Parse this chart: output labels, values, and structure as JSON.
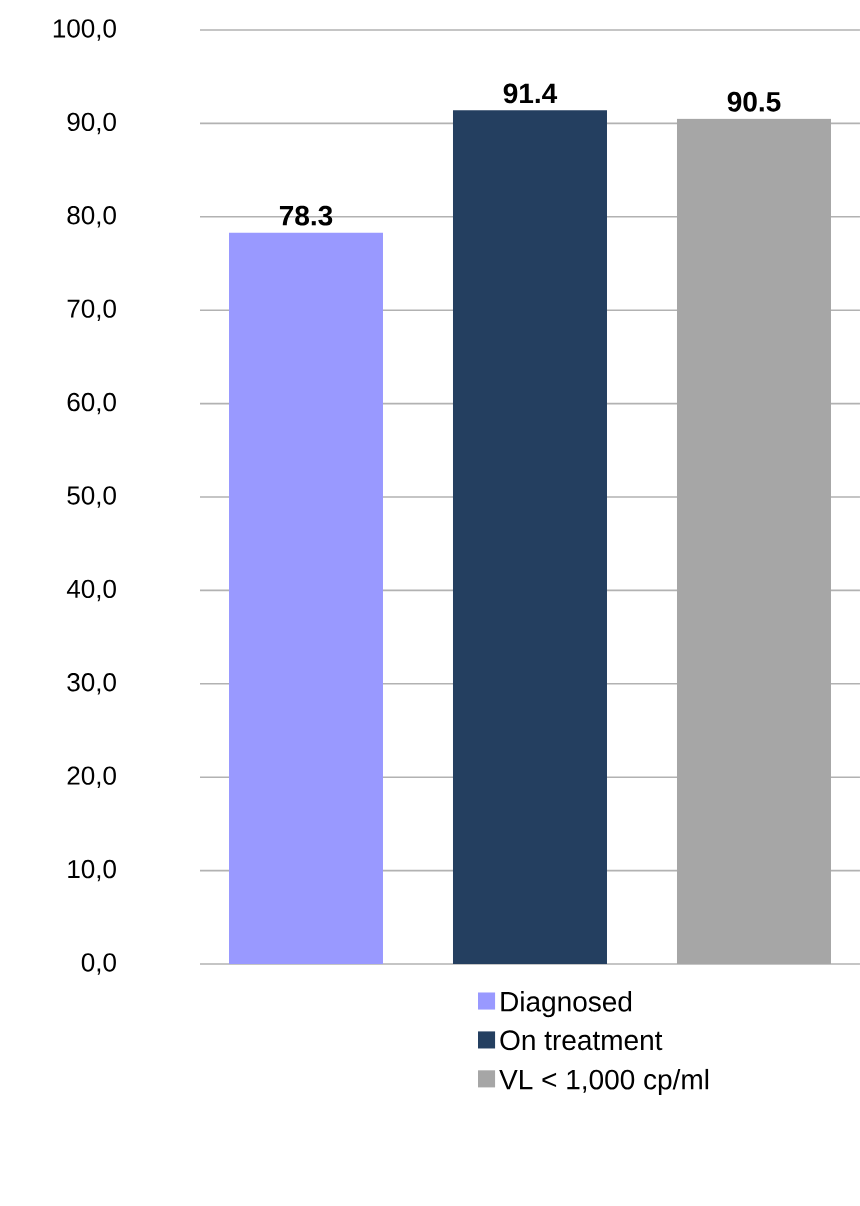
{
  "chart_data": {
    "type": "bar",
    "categories": [
      null
    ],
    "series": [
      {
        "name": "Diagnosed",
        "color": "#9999ff",
        "values": [
          78.3
        ]
      },
      {
        "name": "On treatment",
        "color": "#243f60",
        "values": [
          91.4
        ]
      },
      {
        "name": "VL < 1,000 cp/ml",
        "color": "#a6a6a6",
        "values": [
          90.5
        ]
      }
    ],
    "ylim": [
      0,
      100
    ],
    "yticks": [
      {
        "value": 0,
        "label": "0,0"
      },
      {
        "value": 10,
        "label": "10,0"
      },
      {
        "value": 20,
        "label": "20,0"
      },
      {
        "value": 30,
        "label": "30,0"
      },
      {
        "value": 40,
        "label": "40,0"
      },
      {
        "value": 50,
        "label": "50,0"
      },
      {
        "value": 60,
        "label": "60,0"
      },
      {
        "value": 70,
        "label": "70,0"
      },
      {
        "value": 80,
        "label": "80,0"
      },
      {
        "value": 90,
        "label": "90,0"
      },
      {
        "value": 100,
        "label": "100,0"
      }
    ],
    "grid": "y",
    "legend": "bottom",
    "data_labels": true
  }
}
